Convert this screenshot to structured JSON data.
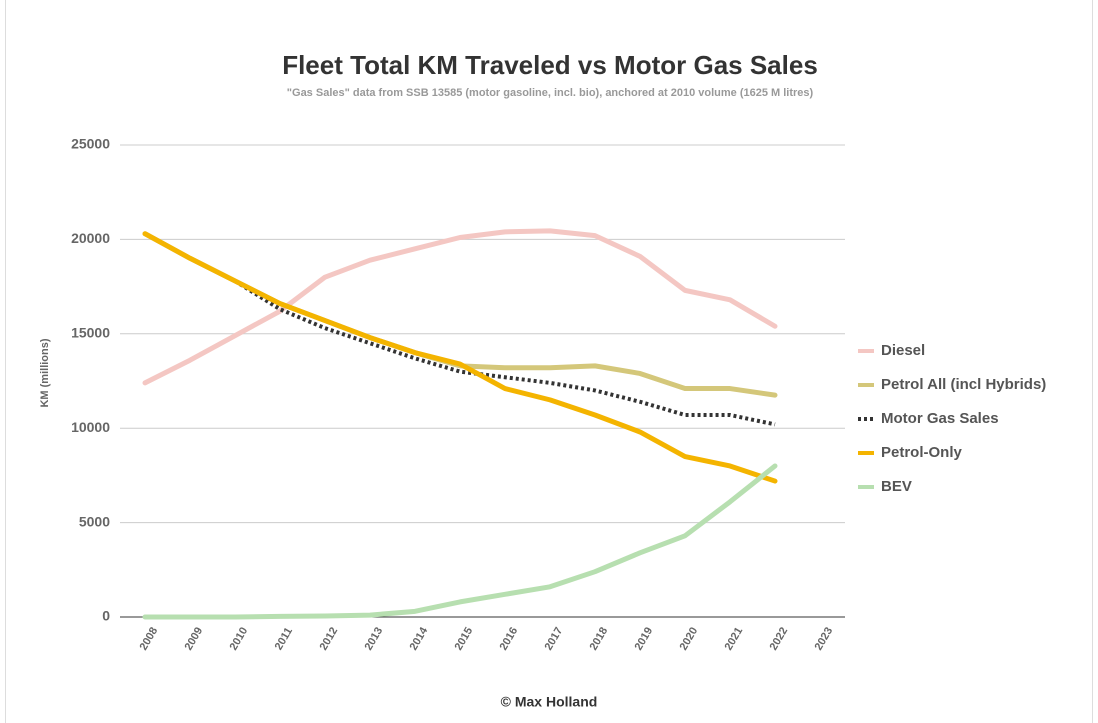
{
  "chart_data": {
    "type": "line",
    "title": "Fleet Total KM Traveled vs Motor Gas Sales",
    "subtitle": "\"Gas Sales\" data from SSB 13585 (motor gasoline, incl. bio), anchored at 2010 volume (1625 M litres)",
    "y_label": "KM (millions)",
    "footer": "© Max Holland",
    "categories": [
      "2008",
      "2009",
      "2010",
      "2011",
      "2012",
      "2013",
      "2014",
      "2015",
      "2016",
      "2017",
      "2018",
      "2019",
      "2020",
      "2021",
      "2022",
      "2023"
    ],
    "ylim": [
      0,
      25000
    ],
    "yticks": [
      0,
      5000,
      10000,
      15000,
      20000,
      25000
    ],
    "grid": true,
    "legend": "right",
    "series": [
      {
        "name": "Diesel",
        "color": "#f4c7c3",
        "values": [
          12400,
          13600,
          14900,
          16200,
          18000,
          18900,
          19500,
          20100,
          20400,
          20450,
          20200,
          19100,
          17300,
          16800,
          15400,
          null
        ]
      },
      {
        "name": "Petrol All (incl Hybrids)",
        "color": "#d4c77a",
        "values": [
          20300,
          19000,
          17800,
          16600,
          15700,
          14800,
          14000,
          13300,
          13200,
          13200,
          13300,
          12900,
          12100,
          12100,
          11750,
          null
        ]
      },
      {
        "name": "Motor Gas Sales",
        "color": "#333333",
        "dashed": true,
        "values": [
          null,
          null,
          17800,
          16300,
          15300,
          14500,
          13700,
          13000,
          12700,
          12400,
          12000,
          11400,
          10700,
          10700,
          10200,
          null
        ]
      },
      {
        "name": "Petrol-Only",
        "color": "#f4b400",
        "values": [
          20300,
          19000,
          17800,
          16600,
          15700,
          14800,
          14000,
          13400,
          12100,
          11500,
          10700,
          9800,
          8500,
          8000,
          7200,
          null
        ]
      },
      {
        "name": "BEV",
        "color": "#b7dfb0",
        "values": [
          0,
          0,
          0,
          30,
          50,
          100,
          300,
          800,
          1200,
          1600,
          2400,
          3400,
          4300,
          6100,
          8000,
          null
        ]
      }
    ]
  }
}
